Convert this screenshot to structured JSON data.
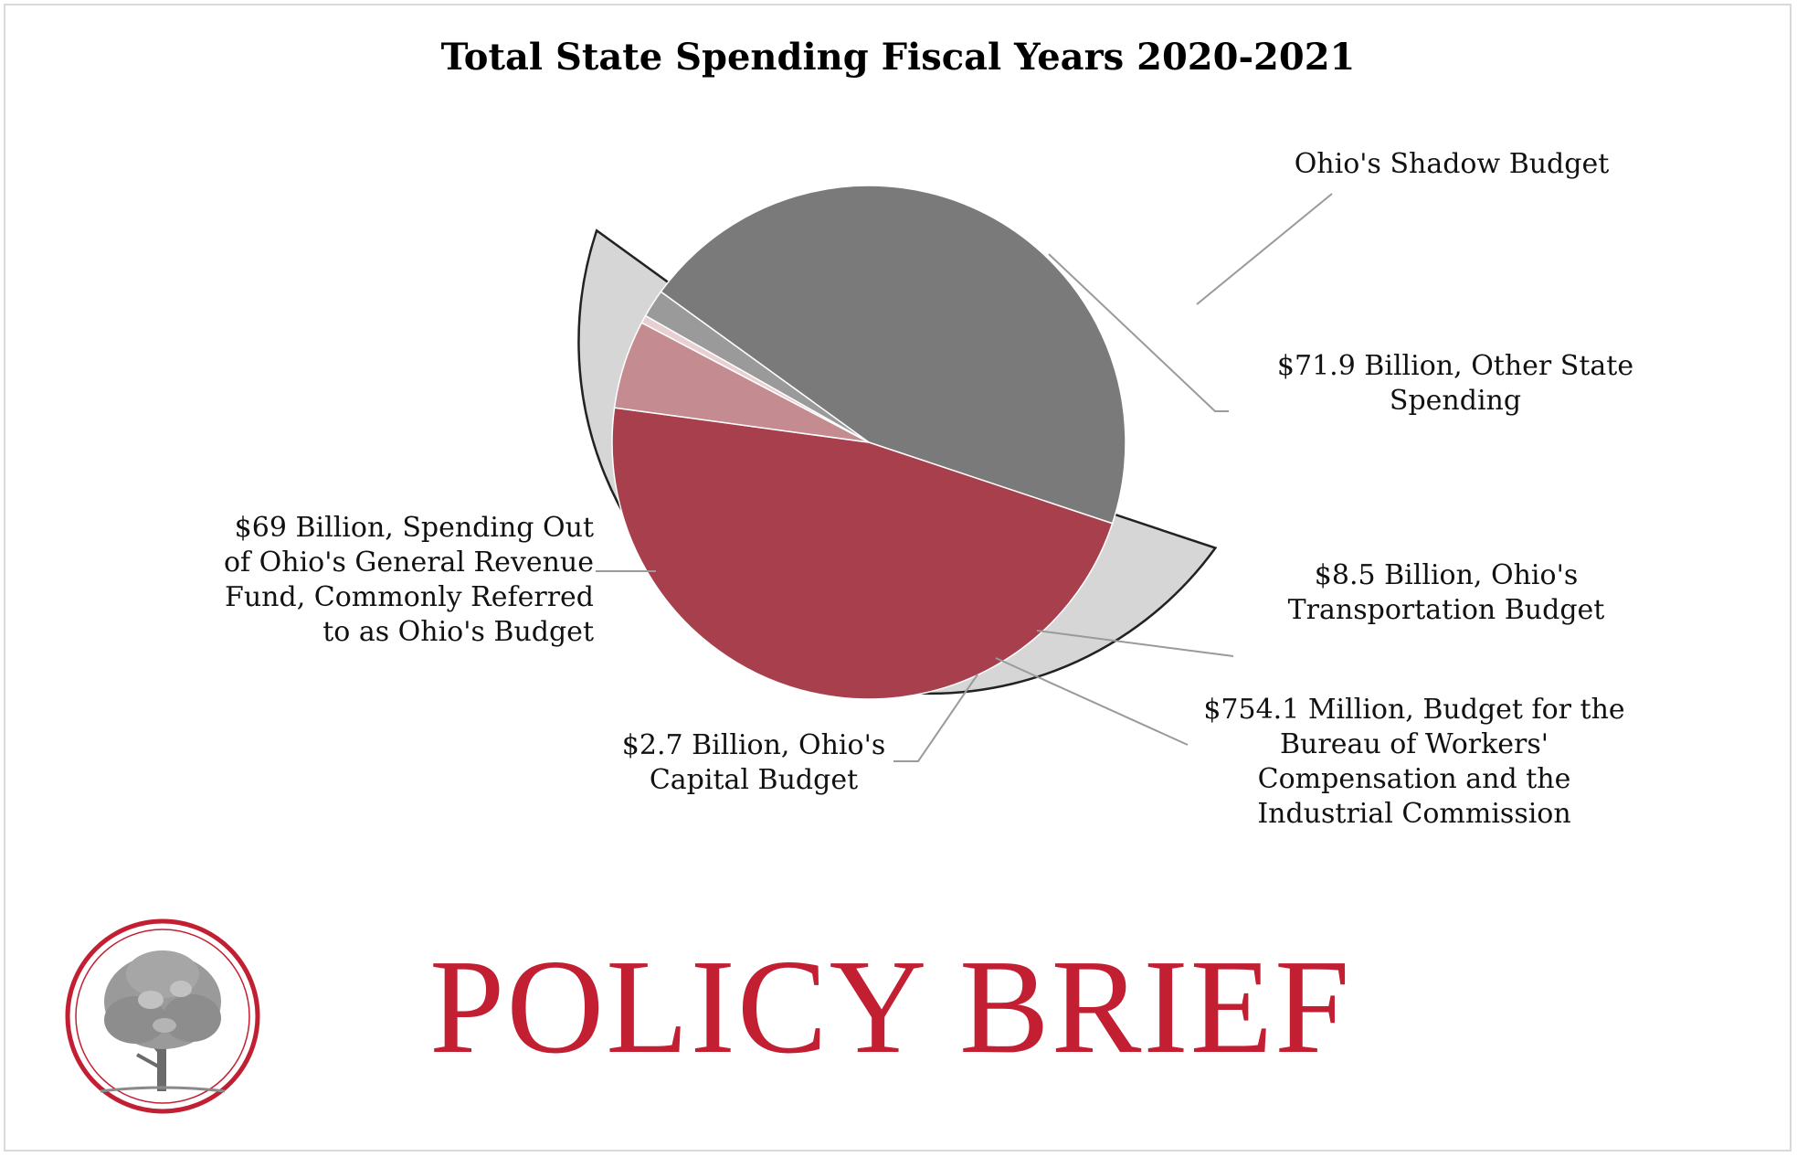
{
  "chart_data": {
    "type": "pie",
    "title": "Total State Spending Fiscal Years 2020-2021",
    "unit": "billion USD",
    "slices": [
      {
        "name": "Spending Out of Ohio's General Revenue Fund, Commonly Referred to as Ohio's Budget",
        "value": 69.0,
        "label_lines": [
          "$69 Billion, Spending Out",
          "of Ohio's General Revenue",
          "Fund, Commonly Referred",
          "to as Ohio's Budget"
        ],
        "color": "#7a7a7a"
      },
      {
        "name": "Other State Spending",
        "value": 71.9,
        "label_lines": [
          "$71.9 Billion, Other State",
          "Spending"
        ],
        "color": "#a83f4d"
      },
      {
        "name": "Ohio's Transportation Budget",
        "value": 8.5,
        "label_lines": [
          "$8.5 Billion, Ohio's",
          "Transportation Budget"
        ],
        "color": "#c48c91"
      },
      {
        "name": "Budget for the Bureau of Workers' Compensation and the Industrial Commission",
        "value": 0.7541,
        "label_lines": [
          "$754.1 Million, Budget for the",
          "Bureau of Workers'",
          "Compensation and the",
          "Industrial Commission"
        ],
        "color": "#e8cfd1"
      },
      {
        "name": "Ohio's Capital Budget",
        "value": 2.7,
        "label_lines": [
          "$2.7 Billion, Ohio's",
          "Capital Budget"
        ],
        "color": "#9a9a9a"
      }
    ],
    "group_ring": {
      "name": "Ohio's Shadow Budget",
      "label": "Ohio's Shadow Budget",
      "covers": [
        "Other State Spending",
        "Ohio's Transportation Budget",
        "Budget for the Bureau of Workers' Compensation and the Industrial Commission",
        "Ohio's Capital Budget"
      ],
      "color": "#d6d6d6"
    }
  },
  "footer": {
    "brand_text": "POLICY BRIEF",
    "brand_color": "#c21f32",
    "logo_icon": "tree-seal-icon"
  }
}
